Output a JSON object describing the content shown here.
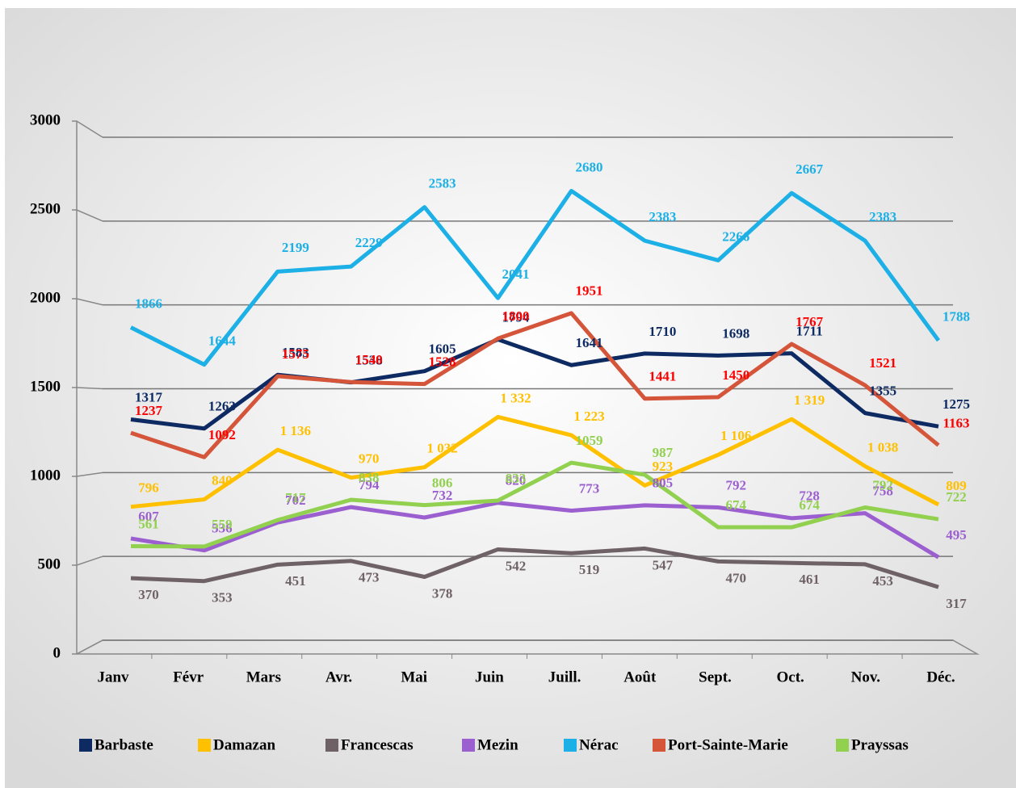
{
  "chart_data": {
    "type": "line",
    "categories": [
      "Janv",
      "Févr",
      "Mars",
      "Avr.",
      "Mai",
      "Juin",
      "Juill.",
      "Août",
      "Sept.",
      "Oct.",
      "Nov.",
      "Déc."
    ],
    "ylim": [
      0,
      3000
    ],
    "yticks": [
      0,
      500,
      1000,
      1500,
      2000,
      2500,
      3000
    ],
    "grid": true,
    "legend": "bottom",
    "series": [
      {
        "name": "Barbaste",
        "color": "#0e2a62",
        "values": [
          1317,
          1263,
          1583,
          1538,
          1605,
          1794,
          1641,
          1710,
          1698,
          1711,
          1355,
          1275
        ]
      },
      {
        "name": "Damazan",
        "color": "#ffc000",
        "values": [
          796,
          840,
          1136,
          970,
          1032,
          1332,
          1223,
          923,
          1106,
          1319,
          1038,
          809
        ],
        "value_labels": [
          "796",
          "840",
          "1 136",
          "970",
          "1 032",
          "1 332",
          "1 223",
          "923",
          "1 106",
          "1 319",
          "1 038",
          "809"
        ]
      },
      {
        "name": "Francescas",
        "color": "#6f6266",
        "values": [
          370,
          353,
          451,
          473,
          378,
          542,
          519,
          547,
          470,
          461,
          453,
          317
        ]
      },
      {
        "name": "Mezin",
        "color": "#9b5fd0",
        "values": [
          607,
          536,
          702,
          794,
          732,
          820,
          773,
          805,
          792,
          728,
          758,
          495
        ]
      },
      {
        "name": "Nérac",
        "color": "#1cb0e6",
        "values": [
          1866,
          1644,
          2199,
          2229,
          2583,
          2041,
          2680,
          2383,
          2266,
          2667,
          2383,
          1788
        ]
      },
      {
        "name": "Port-Sainte-Marie",
        "color": "#d4553a",
        "values": [
          1237,
          1092,
          1575,
          1540,
          1528,
          1800,
          1951,
          1441,
          1450,
          1767,
          1521,
          1163
        ]
      },
      {
        "name": "Prayssas",
        "color": "#92d050",
        "values": [
          561,
          559,
          717,
          838,
          806,
          833,
          1059,
          987,
          674,
          674,
          792,
          722
        ]
      }
    ]
  }
}
